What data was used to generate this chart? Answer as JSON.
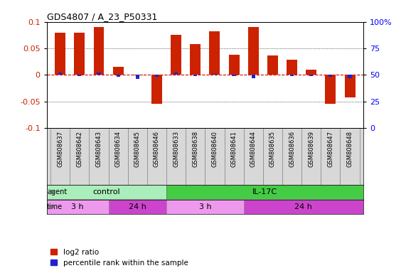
{
  "title": "GDS4807 / A_23_P50331",
  "samples": [
    "GSM808637",
    "GSM808642",
    "GSM808643",
    "GSM808634",
    "GSM808645",
    "GSM808646",
    "GSM808633",
    "GSM808638",
    "GSM808640",
    "GSM808641",
    "GSM808644",
    "GSM808635",
    "GSM808636",
    "GSM808639",
    "GSM808647",
    "GSM808648"
  ],
  "log2_ratio": [
    0.08,
    0.08,
    0.09,
    0.015,
    -0.001,
    -0.054,
    0.075,
    0.058,
    0.082,
    0.038,
    0.09,
    0.037,
    0.028,
    0.01,
    -0.055,
    -0.042
  ],
  "percentile_rank": [
    52,
    49,
    52,
    48,
    46,
    48,
    52,
    49,
    51,
    49,
    47,
    50,
    49,
    49,
    48,
    47
  ],
  "bar_color_red": "#cc2200",
  "bar_color_blue": "#2222cc",
  "dashed_line_color": "#cc0000",
  "bg_color": "#ffffff",
  "plot_bg": "#ffffff",
  "agent_groups": [
    {
      "label": "control",
      "start": 0,
      "end": 6,
      "color": "#aaeebb"
    },
    {
      "label": "IL-17C",
      "start": 6,
      "end": 16,
      "color": "#44cc44"
    }
  ],
  "time_groups": [
    {
      "label": "3 h",
      "start": 0,
      "end": 3,
      "color": "#ee99ee"
    },
    {
      "label": "24 h",
      "start": 3,
      "end": 6,
      "color": "#cc44cc"
    },
    {
      "label": "3 h",
      "start": 6,
      "end": 10,
      "color": "#ee99ee"
    },
    {
      "label": "24 h",
      "start": 10,
      "end": 16,
      "color": "#cc44cc"
    }
  ],
  "ylim": [
    -0.1,
    0.1
  ],
  "yticks_left": [
    -0.1,
    -0.05,
    0.0,
    0.05,
    0.1
  ],
  "yticks_right": [
    0,
    25,
    50,
    75,
    100
  ],
  "legend_red": "log2 ratio",
  "legend_blue": "percentile rank within the sample",
  "bar_width": 0.55
}
